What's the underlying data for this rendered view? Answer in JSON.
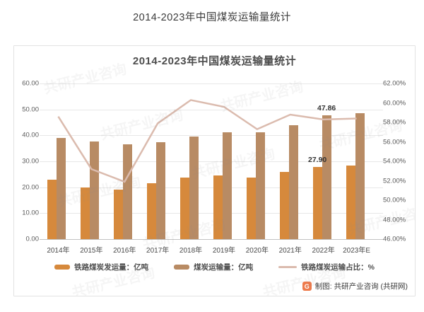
{
  "page": {
    "title": "2014-2023年中国煤炭运输量统计"
  },
  "chart": {
    "title": "2014-2023年中国煤炭运输量统计",
    "watermark_text": "共研产业咨询",
    "credit": {
      "logo_letter": "G",
      "text": "制图: 共研产业咨询 (共研网)"
    },
    "colors": {
      "bar_rail": "#D6893C",
      "bar_total": "#B88B64",
      "line_share": "#DBBBAE",
      "grid": "#E7E7E7",
      "axis_text": "#595959"
    }
  },
  "chart_data": {
    "type": "bar",
    "title": "2014-2023年中国煤炭运输量统计",
    "categories": [
      "2014年",
      "2015年",
      "2016年",
      "2017年",
      "2018年",
      "2019年",
      "2020年",
      "2021年",
      "2022年",
      "2023年E"
    ],
    "series": [
      {
        "name": "铁路煤炭发运量：亿吨",
        "type": "bar",
        "axis": "left",
        "color": "#D6893C",
        "values": [
          22.9,
          20.0,
          19.0,
          21.6,
          23.8,
          24.6,
          23.6,
          25.8,
          27.9,
          28.3
        ]
      },
      {
        "name": "煤炭运输量：亿吨",
        "type": "bar",
        "axis": "left",
        "color": "#B88B64",
        "values": [
          39.1,
          37.6,
          36.6,
          37.3,
          39.5,
          41.3,
          41.2,
          43.9,
          47.86,
          48.5
        ]
      },
      {
        "name": "铁路煤炭运输占比：%",
        "type": "line",
        "axis": "right",
        "color": "#DBBBAE",
        "values": [
          58.6,
          53.2,
          51.9,
          57.9,
          60.3,
          59.6,
          57.3,
          58.8,
          58.3,
          58.4
        ]
      }
    ],
    "left_axis": {
      "min": 0,
      "max": 60,
      "ticks": [
        "0.00",
        "10.00",
        "20.00",
        "30.00",
        "40.00",
        "50.00",
        "60.00"
      ]
    },
    "right_axis": {
      "min": 46,
      "max": 62,
      "ticks": [
        "46.00%",
        "48.00%",
        "50.00%",
        "52.00%",
        "54.00%",
        "56.00%",
        "58.00%",
        "60.00%",
        "62.00%"
      ]
    },
    "data_labels": [
      {
        "series": 0,
        "index": 8,
        "text": "27.90"
      },
      {
        "series": 1,
        "index": 8,
        "text": "47.86"
      }
    ],
    "legend_position": "bottom",
    "grid": true
  }
}
